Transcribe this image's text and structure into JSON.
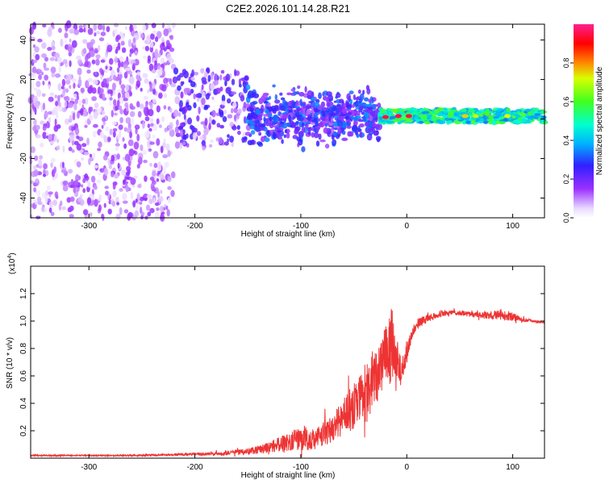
{
  "title": "C2E2.2026.101.14.28.R21",
  "chart_data": [
    {
      "type": "heatmap",
      "name": "spectrogram",
      "xlabel": "Height of straight line (km)",
      "ylabel": "Frequency (Hz)",
      "xlim": [
        -355,
        130
      ],
      "ylim": [
        -50,
        48
      ],
      "x_ticks": [
        -300,
        -200,
        -100,
        0,
        100
      ],
      "y_ticks": [
        40,
        20,
        0,
        -20,
        -40
      ],
      "x_tick_labels": [
        "-300",
        "-200",
        "-100",
        "0",
        "100"
      ],
      "y_tick_labels": [
        "40",
        "20",
        "0",
        "-20",
        "-40"
      ],
      "colorbar": {
        "label": "Normalized spectral amplitude",
        "range": [
          0,
          1
        ],
        "ticks": [
          0.0,
          0.2,
          0.4,
          0.6,
          0.8
        ],
        "tick_labels": [
          "0.0",
          "0.2",
          "0.4",
          "0.6",
          "0.8"
        ]
      },
      "features": [
        {
          "x_range": [
            -355,
            -220
          ],
          "f_range": [
            -50,
            48
          ],
          "amplitude": 0.12,
          "kind": "noise"
        },
        {
          "x_range": [
            -220,
            -150
          ],
          "f_range": [
            -15,
            25
          ],
          "amplitude": 0.2,
          "kind": "noise"
        },
        {
          "x_range": [
            -150,
            -25
          ],
          "f_range": [
            -12,
            15
          ],
          "amplitude": 0.28,
          "kind": "signal"
        },
        {
          "x_range": [
            -25,
            130
          ],
          "f_range": [
            -2,
            5
          ],
          "amplitude": 0.6,
          "kind": "carrier"
        }
      ],
      "carrier_peaks": [
        {
          "x": -20,
          "f": 1,
          "amplitude": 0.95
        },
        {
          "x": -8,
          "f": 1.5,
          "amplitude": 0.95
        },
        {
          "x": 2,
          "f": 1.5,
          "amplitude": 0.95
        },
        {
          "x": 55,
          "f": 1.5,
          "amplitude": 0.75
        },
        {
          "x": 65,
          "f": 1.5,
          "amplitude": 0.7
        },
        {
          "x": 95,
          "f": 1.5,
          "amplitude": 0.72
        }
      ]
    },
    {
      "type": "line",
      "name": "snr",
      "xlabel": "Height of straight line (km)",
      "ylabel": "SNR (10 * v/v)",
      "scale_label": "(x10",
      "scale_exponent": "4",
      "scale_suffix": ")",
      "xlim": [
        -355,
        130
      ],
      "ylim": [
        0,
        1.4
      ],
      "x_ticks": [
        -300,
        -200,
        -100,
        0,
        100
      ],
      "y_ticks": [
        0.2,
        0.4,
        0.6,
        0.8,
        1.0,
        1.2
      ],
      "x_tick_labels": [
        "-300",
        "-200",
        "-100",
        "0",
        "100"
      ],
      "y_tick_labels": [
        "0.2",
        "0.4",
        "0.6",
        "0.8",
        "1.0",
        "1.2"
      ],
      "color": "#ee3333",
      "series": [
        {
          "name": "SNR",
          "x": [
            -355,
            -300,
            -250,
            -220,
            -200,
            -170,
            -150,
            -130,
            -110,
            -100,
            -90,
            -80,
            -70,
            -60,
            -50,
            -40,
            -30,
            -20,
            -15,
            -10,
            -5,
            0,
            5,
            10,
            20,
            30,
            40,
            50,
            60,
            70,
            80,
            90,
            100,
            110,
            120,
            130
          ],
          "y": [
            0.02,
            0.02,
            0.02,
            0.025,
            0.03,
            0.035,
            0.05,
            0.08,
            0.12,
            0.15,
            0.13,
            0.17,
            0.22,
            0.3,
            0.38,
            0.5,
            0.62,
            0.7,
            0.85,
            0.75,
            0.62,
            0.78,
            0.92,
            0.98,
            1.02,
            1.05,
            1.06,
            1.06,
            1.05,
            1.04,
            1.04,
            1.05,
            1.03,
            1.01,
            1.0,
            0.99
          ],
          "noise": [
            0.005,
            0.005,
            0.006,
            0.008,
            0.01,
            0.015,
            0.025,
            0.04,
            0.07,
            0.09,
            0.08,
            0.09,
            0.1,
            0.13,
            0.17,
            0.2,
            0.22,
            0.25,
            0.3,
            0.2,
            0.1,
            0.08,
            0.05,
            0.04,
            0.03,
            0.025,
            0.02,
            0.02,
            0.02,
            0.025,
            0.03,
            0.04,
            0.03,
            0.015,
            0.01,
            0.01
          ]
        }
      ]
    }
  ]
}
